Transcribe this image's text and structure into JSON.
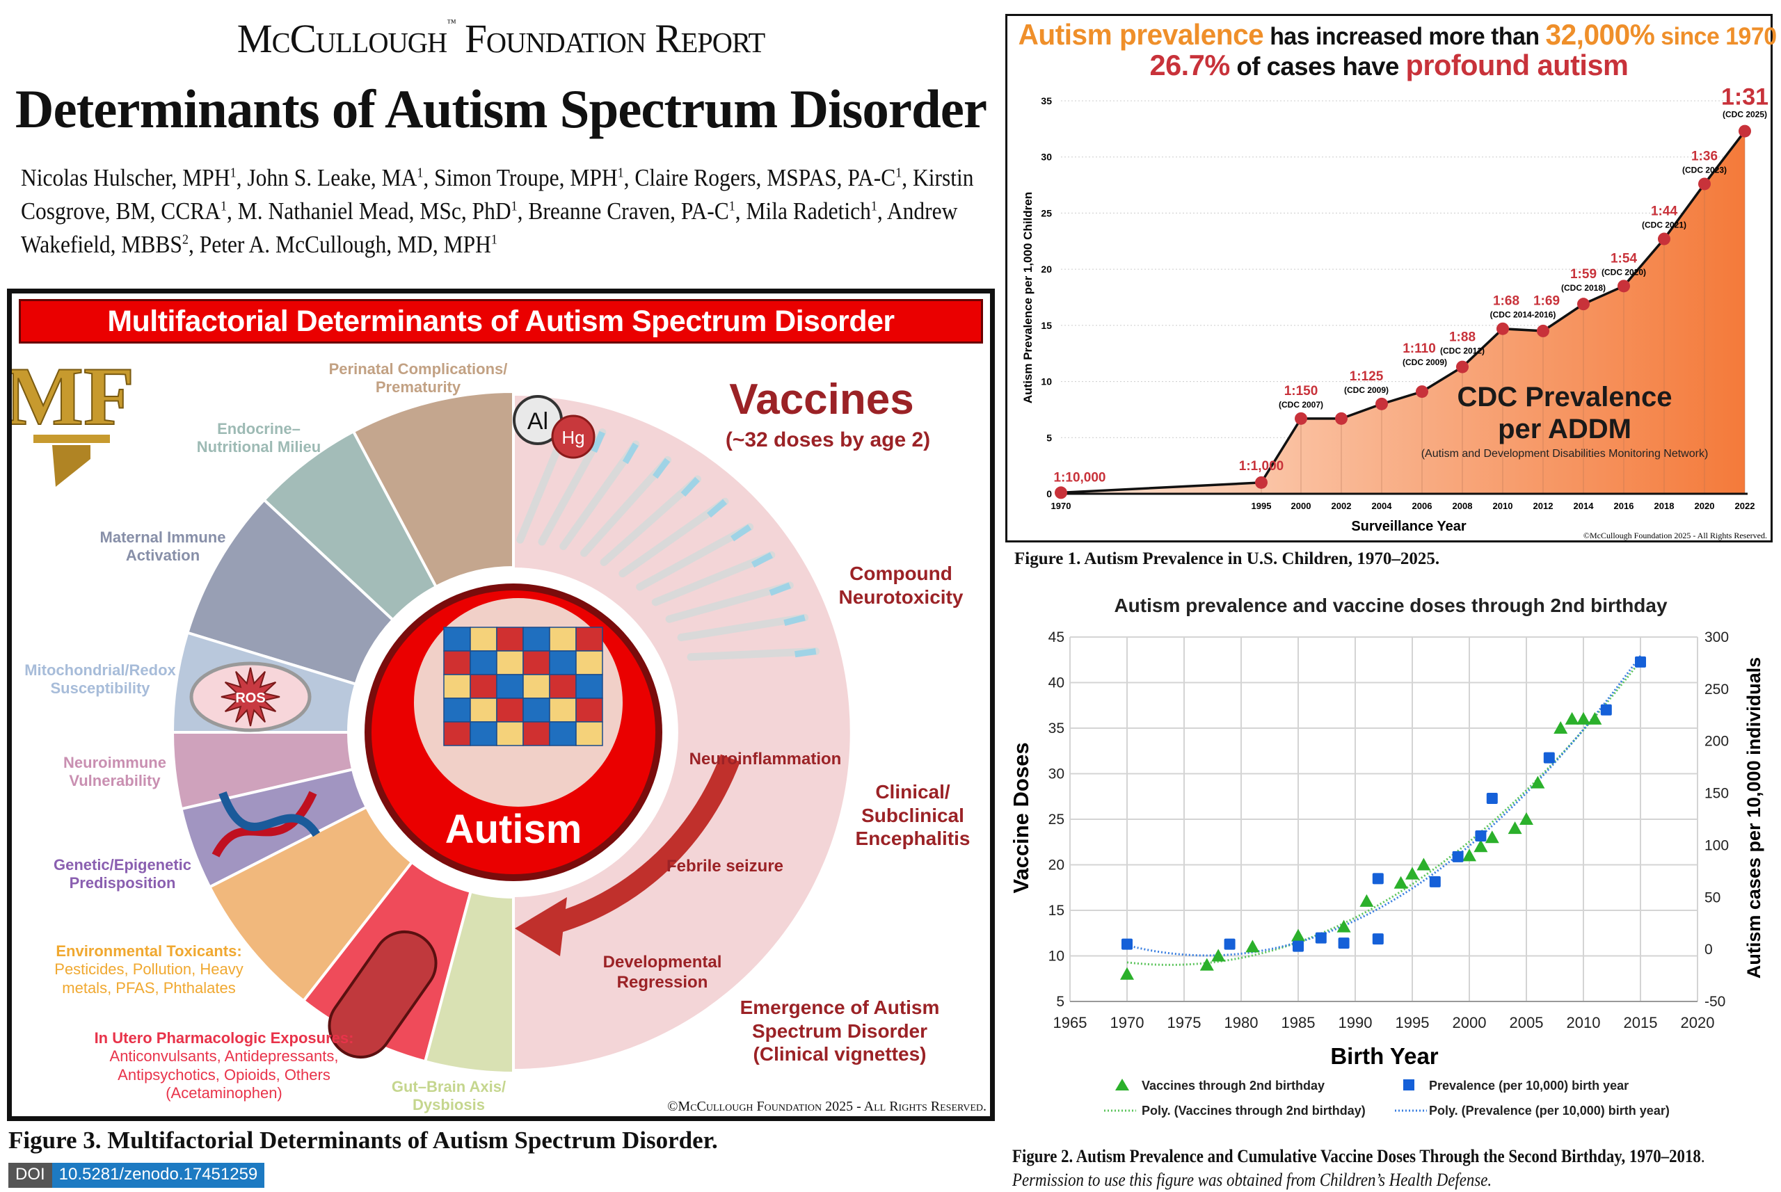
{
  "header": {
    "org_a": "McCullough",
    "tm": "™",
    "org_b": "Foundation Report"
  },
  "title": "Determinants of Autism Spectrum Disorder",
  "authors": [
    {
      "name": "Nicolas Hulscher, MPH",
      "sup": "1"
    },
    {
      "name": "John S. Leake, MA",
      "sup": "1"
    },
    {
      "name": "Simon Troupe, MPH",
      "sup": "1"
    },
    {
      "name": "Claire Rogers, MSPAS, PA-C",
      "sup": "1"
    },
    {
      "name": "Kirstin Cosgrove, BM, CCRA",
      "sup": "1"
    },
    {
      "name": "M. Nathaniel Mead, MSc, PhD",
      "sup": "1"
    },
    {
      "name": "Breanne Craven, PA-C",
      "sup": "1"
    },
    {
      "name": "Mila Radetich",
      "sup": "1"
    },
    {
      "name": "Andrew Wakefield, MBBS",
      "sup": "2"
    },
    {
      "name": "Peter A. McCullough, MD, MPH",
      "sup": "1"
    }
  ],
  "figure3": {
    "banner": "Multifactorial Determinants of Autism Spectrum Disorder",
    "logo": "MF",
    "center_label": "Autism",
    "elements": {
      "al": "Al",
      "hg": "Hg",
      "ros": "ROS"
    },
    "factors": [
      {
        "title": "Perinatal Complications/",
        "title2": "Prematurity",
        "color": "#c4a68e",
        "text": "#c2a183"
      },
      {
        "title": "Endocrine–",
        "title2": "Nutritional Milieu",
        "color": "#a3bcb8",
        "text": "#9dbab4"
      },
      {
        "title": "Maternal Immune",
        "title2": "Activation",
        "color": "#989fb4",
        "text": "#878fa8"
      },
      {
        "title": "Mitochondrial/Redox",
        "title2": "Susceptibility",
        "color": "#b9c8dc",
        "text": "#a7bcd9"
      },
      {
        "title": "Neuroimmune",
        "title2": "Vulnerability",
        "color": "#cfa2bc",
        "text": "#c98fb1"
      },
      {
        "title": "Genetic/Epigenetic",
        "title2": "Predisposition",
        "color": "#a195c1",
        "text": "#8a5fb0"
      },
      {
        "title": "Environmental Toxicants:",
        "title2": "Pesticides, Pollution, Heavy metals, PFAS, Phthalates",
        "color": "#f1b87c",
        "text": "#f0a830"
      },
      {
        "title": "In Utero Pharmacologic Exposures:",
        "title2": "Anticonvulsants, Antidepressants, Antipsychotics, Opioids, Others (Acetaminophen)",
        "color": "#ef4b5a",
        "text": "#e8334a"
      },
      {
        "title": "Gut–Brain Axis/",
        "title2": "Dysbiosis",
        "color": "#d9e1b3",
        "text": "#c5d68e"
      }
    ],
    "vaccines": {
      "title": "Vaccines",
      "subtitle": "(~32 doses by age 2)",
      "compound": "Compound Neurotoxicity",
      "neuroinflammation": "Neuroinflammation",
      "encephalitis": "Clinical/ Subclinical Encephalitis",
      "febrile": "Febrile seizure",
      "regression": "Developmental Regression",
      "emergence": "Emergence of Autism Spectrum Disorder (Clinical vignettes)",
      "color": "#9b2226"
    },
    "copyright": "©McCullough Foundation 2025 - All Rights Reserved.",
    "caption": "Figure 3. Multifactorial Determinants of Autism Spectrum Disorder."
  },
  "doi": {
    "label": "DOI",
    "value": "10.5281/zenodo.17451259"
  },
  "chart_data": [
    {
      "type": "area",
      "title_parts": [
        "Autism prevalence",
        " has increased more than ",
        "32,000%",
        " since 1970"
      ],
      "subtitle_parts": [
        "26.7%",
        " of cases have ",
        "profound autism"
      ],
      "ylabel": "Autism Prevalence per 1,000 Children",
      "xlabel": "Surveillance Year",
      "ylim": [
        0,
        35
      ],
      "yticks": [
        0,
        5,
        10,
        15,
        20,
        25,
        30,
        35
      ],
      "grid": true,
      "annotation": "CDC Prevalence per ADDM",
      "annotation_sub": "(Autism and Development Disabilities Monitoring Network)",
      "copyright": "©McCullough Foundation 2025 - All Rights Reserved.",
      "points": [
        {
          "year": 1970,
          "value": 0.1,
          "ratio": "1:10,000",
          "source": ""
        },
        {
          "year": 1995,
          "value": 1.0,
          "ratio": "1:1,000",
          "source": ""
        },
        {
          "year": 2000,
          "value": 6.7,
          "ratio": "1:150",
          "source": "(CDC 2007)"
        },
        {
          "year": 2002,
          "value": 6.7,
          "ratio": "",
          "source": ""
        },
        {
          "year": 2004,
          "value": 8.0,
          "ratio": "1:125",
          "source": "(CDC 2009)"
        },
        {
          "year": 2006,
          "value": 9.1,
          "ratio": "1:110",
          "source": "(CDC 2009)"
        },
        {
          "year": 2008,
          "value": 11.3,
          "ratio": "1:88",
          "source": "(CDC 2012)"
        },
        {
          "year": 2010,
          "value": 14.7,
          "ratio": "1:68",
          "source": "(CDC 2014-2016)"
        },
        {
          "year": 2012,
          "value": 14.5,
          "ratio": "1:69",
          "source": ""
        },
        {
          "year": 2014,
          "value": 16.9,
          "ratio": "1:59",
          "source": "(CDC 2018)"
        },
        {
          "year": 2016,
          "value": 18.5,
          "ratio": "1:54",
          "source": "(CDC 2020)"
        },
        {
          "year": 2018,
          "value": 22.7,
          "ratio": "1:44",
          "source": "(CDC 2021)"
        },
        {
          "year": 2020,
          "value": 27.6,
          "ratio": "1:36",
          "source": "(CDC 2023)"
        },
        {
          "year": 2022,
          "value": 32.3,
          "ratio": "1:31",
          "source": "(CDC 2025)"
        }
      ],
      "colors": {
        "line": "#111111",
        "point": "#c8323a",
        "fill_start": "#fde3d3",
        "fill_end": "#f47a3a"
      },
      "caption": "Figure 1. Autism Prevalence in U.S. Children, 1970–2025."
    },
    {
      "type": "scatter",
      "title": "Autism prevalence and vaccine doses through 2nd birthday",
      "xlabel": "Birth Year",
      "ylabel": "Vaccine Doses",
      "y2label": "Autism cases per 10,000 individuals",
      "xlim": [
        1965,
        2020
      ],
      "ylim": [
        5,
        45
      ],
      "y2lim": [
        -50,
        300
      ],
      "xticks": [
        1965,
        1970,
        1975,
        1980,
        1985,
        1990,
        1995,
        2000,
        2005,
        2010,
        2015,
        2020
      ],
      "yticks": [
        5,
        10,
        15,
        20,
        25,
        30,
        35,
        40,
        45
      ],
      "y2ticks": [
        -50,
        0,
        50,
        100,
        150,
        200,
        250,
        300
      ],
      "grid": true,
      "series": [
        {
          "name": "Vaccines through 2nd birthday",
          "axis": "left",
          "marker": "triangle",
          "color": "#2bb02b",
          "x": [
            1970,
            1977,
            1978,
            1981,
            1985,
            1989,
            1991,
            1994,
            1995,
            1996,
            2000,
            2001,
            2002,
            2004,
            2005,
            2006,
            2008,
            2009,
            2010,
            2011
          ],
          "y": [
            8,
            9,
            10,
            11,
            12.2,
            13.2,
            16,
            18,
            19,
            20,
            21,
            22,
            23,
            24,
            25,
            29,
            35,
            36,
            36,
            36
          ]
        },
        {
          "name": "Prevalence (per 10,000) birth year",
          "axis": "right",
          "marker": "square",
          "color": "#1560d8",
          "x": [
            1970,
            1979,
            1985,
            1987,
            1989,
            1992,
            1992,
            1997,
            1999,
            2001,
            2002,
            2007,
            2012,
            2015
          ],
          "y": [
            5,
            5,
            3,
            11,
            6,
            68,
            10,
            65,
            89,
            109,
            145,
            184,
            230,
            276
          ]
        }
      ],
      "trendlines": [
        {
          "name": "Poly. (Vaccines through 2nd birthday)",
          "of": 0,
          "color": "#5cc45c"
        },
        {
          "name": "Poly. (Prevalence (per 10,000) birth year)",
          "of": 1,
          "color": "#3a7fe0"
        }
      ],
      "legend": "bottom",
      "caption_bold": "Figure 2. Autism Prevalence and Cumulative Vaccine Doses Through the Second Birthday, 1970–2018",
      "caption_italic": "Permission to use this figure was obtained from Children’s Health Defense."
    }
  ]
}
